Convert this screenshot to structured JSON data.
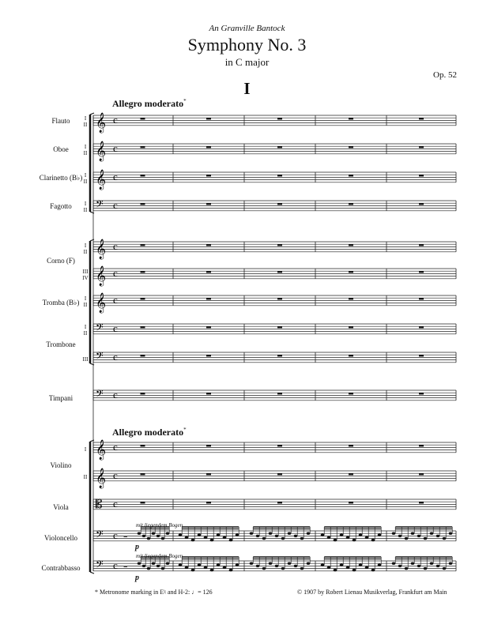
{
  "header": {
    "dedication": "An Granville Bantock",
    "title": "Symphony No. 3",
    "subtitle": "in C major",
    "opus": "Op. 52",
    "movement": "I"
  },
  "tempo": {
    "top": "Allegro moderato",
    "strings": "Allegro moderato",
    "footnote_mark": "*"
  },
  "instruments": {
    "flauto": "Flauto",
    "oboe": "Oboe",
    "clarinetto": "Clarinetto (B♭)",
    "fagotto": "Fagotto",
    "corno": "Corno (F)",
    "tromba": "Tromba (B♭)",
    "trombone": "Trombone",
    "timpani": "Timpani",
    "violino": "Violino",
    "viola": "Viola",
    "violoncello": "Violoncello",
    "contrabbasso": "Contrabbasso"
  },
  "part_numbers": {
    "one_two": "I\nII",
    "three_four": "III\nIV",
    "one": "I",
    "two": "II",
    "three": "III"
  },
  "markings": {
    "bowing": "mit liegendem Bogen",
    "dynamic": "p",
    "time_signature": "c"
  },
  "footer": {
    "footnote": "* Metronome marking in E♮ and H-2: ♩= 126",
    "copyright": "© 1907 by Robert Lienau Musikverlag, Frankfurt am Main"
  }
}
